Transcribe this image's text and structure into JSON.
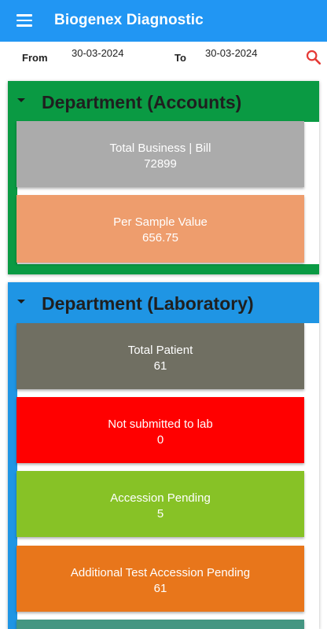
{
  "app": {
    "title": "Biogenex Diagnostic",
    "menu_icon": "menu-icon"
  },
  "filter": {
    "from_label": "From",
    "from_value": "30-03-2024",
    "to_label": "To",
    "to_value": "30-03-2024",
    "search_icon": "search-icon"
  },
  "departments": [
    {
      "title": "Department (Accounts)",
      "color": "#0A9A43",
      "cards": [
        {
          "label": "Total Business | Bill",
          "value": "72899",
          "color": "#ABABAB"
        },
        {
          "label": "Per Sample Value",
          "value": "656.75",
          "color": "#EE9D6D"
        }
      ]
    },
    {
      "title": "Department (Laboratory)",
      "color": "#1F95E4",
      "cards": [
        {
          "label": "Total Patient",
          "value": "61",
          "color": "#706F62"
        },
        {
          "label": "Not submitted to lab",
          "value": "0",
          "color": "#FF0000"
        },
        {
          "label": "Accession Pending",
          "value": "5",
          "color": "#87C226"
        },
        {
          "label": "Additional Test Accession Pending",
          "value": "61",
          "color": "#E8761B"
        },
        {
          "label": "",
          "value": "",
          "color": "#449682"
        }
      ]
    }
  ]
}
